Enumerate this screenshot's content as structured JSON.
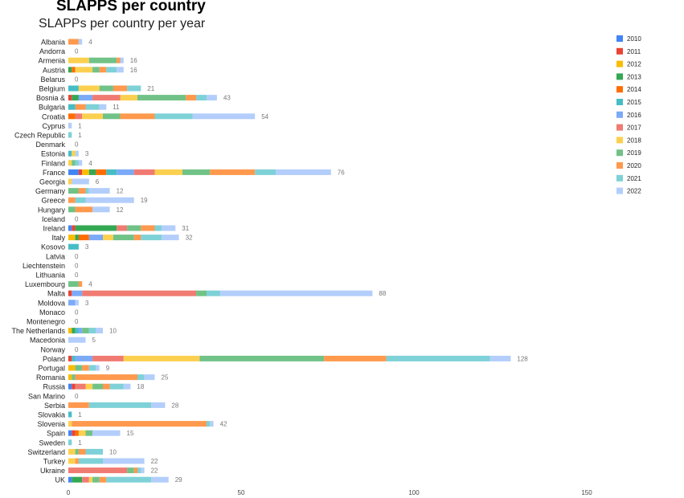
{
  "page": {
    "title": "SLAPPS per country"
  },
  "chart_data": {
    "type": "bar",
    "orientation": "horizontal",
    "stacked": true,
    "title": "SLAPPs per country per year",
    "xlabel": "",
    "ylabel": "",
    "xlim": [
      0,
      150
    ],
    "x_ticks": [
      "0",
      "50",
      "100",
      "150"
    ],
    "grid": false,
    "legend_position": "right",
    "years": [
      "2010",
      "2011",
      "2012",
      "2013",
      "2014",
      "2015",
      "2016",
      "2017",
      "2018",
      "2019",
      "2020",
      "2021",
      "2022"
    ],
    "colors": [
      "#4285f4",
      "#ea4335",
      "#fbbc04",
      "#34a853",
      "#ff6d01",
      "#46bdc6",
      "#7baaf7",
      "#f07b72",
      "#fcd04f",
      "#71c287",
      "#ff994d",
      "#7ed1d7",
      "#b3cefb"
    ],
    "categories": [
      "Albania",
      "Andorra",
      "Armenia",
      "Austria",
      "Belarus",
      "Belgium",
      "Bosnia &",
      "Bulgaria",
      "Croatia",
      "Cyprus",
      "Czech Republic",
      "Denmark",
      "Estonia",
      "Finland",
      "France",
      "Georgia",
      "Germany",
      "Greece",
      "Hungary",
      "Iceland",
      "Ireland",
      "Italy",
      "Kosovo",
      "Latvia",
      "Liechtenstein",
      "Lithuania",
      "Luxembourg",
      "Malta",
      "Moldova",
      "Monaco",
      "Montenegro",
      "The Netherlands",
      "Macedonia",
      "Norway",
      "Poland",
      "Portugal",
      "Romania",
      "Russia",
      "San Marino",
      "Serbia",
      "Slovakia",
      "Slovenia",
      "Spain",
      "Sweden",
      "Switzerland",
      "Turkey",
      "Ukraine",
      "UK"
    ],
    "totals": [
      4,
      0,
      16,
      16,
      0,
      21,
      43,
      11,
      54,
      1,
      1,
      0,
      3,
      4,
      76,
      6,
      12,
      19,
      12,
      0,
      31,
      32,
      3,
      0,
      0,
      0,
      4,
      88,
      3,
      0,
      0,
      10,
      5,
      0,
      128,
      9,
      25,
      18,
      0,
      28,
      1,
      42,
      15,
      1,
      10,
      22,
      22,
      29
    ],
    "values": [
      [
        0,
        0,
        0,
        0,
        0,
        0,
        0,
        0,
        0,
        0,
        3,
        0,
        1
      ],
      [
        0,
        0,
        0,
        0,
        0,
        0,
        0,
        0,
        0,
        0,
        0,
        0,
        0
      ],
      [
        0,
        0,
        0,
        0,
        0,
        0,
        0,
        0,
        6,
        8,
        1,
        0,
        1
      ],
      [
        0,
        0,
        0,
        1,
        1,
        0,
        0,
        0,
        5,
        2,
        2,
        3,
        2
      ],
      [
        0,
        0,
        0,
        0,
        0,
        0,
        0,
        0,
        0,
        0,
        0,
        0,
        0
      ],
      [
        0,
        0,
        0,
        0,
        0,
        3,
        0,
        0,
        6,
        4,
        4,
        4,
        0
      ],
      [
        0,
        1,
        0,
        2,
        0,
        0,
        4,
        8,
        5,
        14,
        3,
        3,
        3
      ],
      [
        0,
        0,
        0,
        0,
        0,
        2,
        0,
        0,
        0,
        0,
        3,
        4,
        2
      ],
      [
        0,
        0,
        0,
        0,
        2,
        0,
        0,
        2,
        6,
        5,
        10,
        11,
        18
      ],
      [
        0,
        0,
        0,
        0,
        0,
        0,
        0,
        0,
        0,
        0,
        0,
        0,
        1
      ],
      [
        0,
        0,
        0,
        0,
        0,
        0,
        0,
        0,
        0,
        0,
        0,
        1,
        0
      ],
      [
        0,
        0,
        0,
        0,
        0,
        0,
        0,
        0,
        0,
        0,
        0,
        0,
        0
      ],
      [
        0,
        0,
        0,
        0,
        0,
        1,
        0,
        0,
        1,
        0,
        0,
        0,
        1
      ],
      [
        0,
        0,
        0,
        0,
        0,
        0,
        0,
        0,
        1,
        1,
        0,
        1,
        1
      ],
      [
        3,
        1,
        2,
        2,
        3,
        3,
        5,
        6,
        8,
        8,
        13,
        6,
        16
      ],
      [
        0,
        0,
        0,
        0,
        0,
        0,
        0,
        0,
        1,
        0,
        0,
        0,
        5
      ],
      [
        0,
        0,
        0,
        0,
        0,
        0,
        0,
        0,
        0,
        3,
        2,
        1,
        6
      ],
      [
        0,
        0,
        0,
        0,
        0,
        0,
        0,
        0,
        0,
        0,
        2,
        3,
        14
      ],
      [
        0,
        0,
        0,
        0,
        0,
        0,
        0,
        0,
        0,
        2,
        5,
        0,
        5
      ],
      [
        0,
        0,
        0,
        0,
        0,
        0,
        0,
        0,
        0,
        0,
        0,
        0,
        0
      ],
      [
        1,
        1,
        0,
        12,
        0,
        0,
        0,
        3,
        0,
        4,
        4,
        2,
        4
      ],
      [
        0,
        0,
        2,
        1,
        3,
        0,
        4,
        0,
        3,
        6,
        2,
        6,
        5
      ],
      [
        0,
        0,
        0,
        0,
        0,
        3,
        0,
        0,
        0,
        0,
        0,
        0,
        0
      ],
      [
        0,
        0,
        0,
        0,
        0,
        0,
        0,
        0,
        0,
        0,
        0,
        0,
        0
      ],
      [
        0,
        0,
        0,
        0,
        0,
        0,
        0,
        0,
        0,
        0,
        0,
        0,
        0
      ],
      [
        0,
        0,
        0,
        0,
        0,
        0,
        0,
        0,
        0,
        0,
        0,
        0,
        0
      ],
      [
        0,
        0,
        0,
        0,
        0,
        0,
        0,
        0,
        0,
        3,
        1,
        0,
        0
      ],
      [
        0,
        1,
        0,
        0,
        0,
        0,
        3,
        33,
        0,
        3,
        0,
        4,
        44
      ],
      [
        0,
        0,
        0,
        0,
        0,
        0,
        2,
        0,
        0,
        0,
        0,
        0,
        1
      ],
      [
        0,
        0,
        0,
        0,
        0,
        0,
        0,
        0,
        0,
        0,
        0,
        0,
        0
      ],
      [
        0,
        0,
        0,
        0,
        0,
        0,
        0,
        0,
        0,
        0,
        0,
        0,
        0
      ],
      [
        0,
        0,
        1,
        1,
        0,
        1,
        1,
        0,
        0,
        2,
        0,
        2,
        2
      ],
      [
        0,
        0,
        0,
        0,
        0,
        0,
        0,
        0,
        0,
        0,
        0,
        0,
        5
      ],
      [
        0,
        0,
        0,
        0,
        0,
        0,
        0,
        0,
        0,
        0,
        0,
        0,
        0
      ],
      [
        0,
        1,
        0,
        0,
        0,
        1,
        5,
        9,
        22,
        36,
        18,
        30,
        6
      ],
      [
        0,
        0,
        2,
        0,
        0,
        0,
        0,
        0,
        0,
        2,
        2,
        2,
        1
      ],
      [
        0,
        0,
        1,
        0,
        0,
        0,
        0,
        0,
        0,
        1,
        18,
        2,
        3
      ],
      [
        1,
        1,
        0,
        0,
        0,
        0,
        0,
        3,
        2,
        3,
        2,
        4,
        2
      ],
      [
        0,
        0,
        0,
        0,
        0,
        0,
        0,
        0,
        0,
        0,
        0,
        0,
        0
      ],
      [
        0,
        0,
        0,
        0,
        0,
        0,
        0,
        0,
        0,
        0,
        6,
        18,
        4
      ],
      [
        0,
        0,
        0,
        0,
        0,
        1,
        0,
        0,
        0,
        0,
        0,
        0,
        0
      ],
      [
        0,
        0,
        0,
        0,
        0,
        0,
        0,
        0,
        1,
        0,
        39,
        1,
        1
      ],
      [
        1,
        1,
        0,
        0,
        1,
        0,
        0,
        0,
        2,
        2,
        0,
        0,
        8
      ],
      [
        0,
        0,
        0,
        0,
        0,
        0,
        0,
        0,
        0,
        0,
        0,
        1,
        0
      ],
      [
        0,
        0,
        0,
        0,
        0,
        0,
        0,
        0,
        2,
        1,
        2,
        5,
        0
      ],
      [
        0,
        0,
        0,
        0,
        0,
        0,
        0,
        0,
        2,
        0,
        1,
        7,
        12
      ],
      [
        0,
        0,
        0,
        0,
        0,
        0,
        0,
        17,
        0,
        2,
        1,
        1,
        1
      ],
      [
        1,
        0,
        0,
        3,
        0,
        0,
        0,
        2,
        1,
        2,
        2,
        13,
        5
      ]
    ]
  }
}
